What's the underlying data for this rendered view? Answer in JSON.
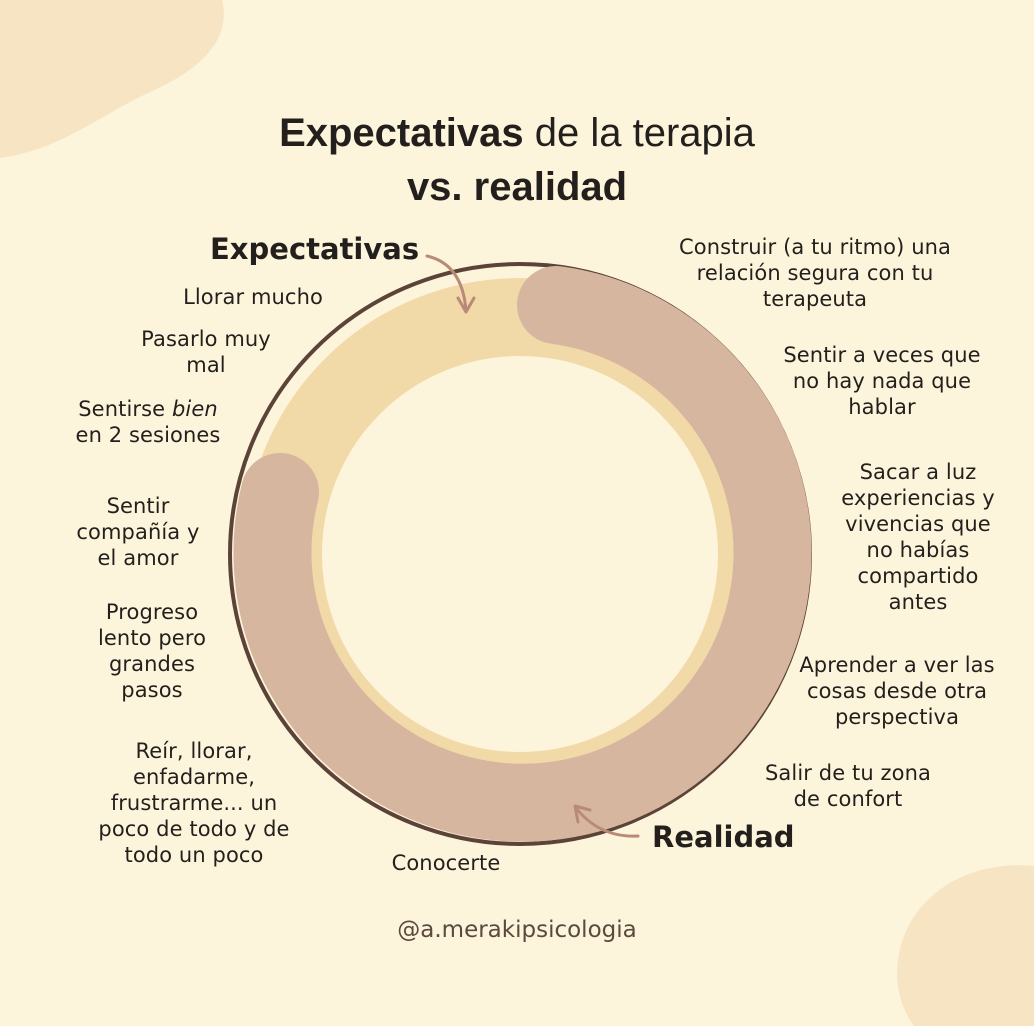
{
  "title": {
    "bold_part": "Expectativas",
    "regular_part": " de la terapia",
    "line2": "vs. realidad"
  },
  "expectativas": {
    "heading": "Expectativas",
    "items": [
      "Llorar mucho",
      "Pasarlo muy mal",
      "Sentirse bien en 2 sesiones"
    ],
    "item3_pre": "Sentirse ",
    "item3_em": "bien",
    "item3_post": "en 2 sesiones"
  },
  "realidad": {
    "heading": "Realidad",
    "items": [
      "Construir (a tu ritmo) una relación segura con tu terapeuta",
      "Sentir a veces que no hay nada que hablar",
      "Sacar a luz experiencias y vivencias que no habías compartido antes",
      "Aprender a ver las cosas desde otra perspectiva",
      "Salir de tu zona de confort",
      "Conocerte",
      "Reír, llorar, enfadarme, frustrarme... un poco de todo y de todo un poco",
      "Progreso lento pero grandes pasos",
      "Sentir compañía y el amor"
    ]
  },
  "chart_data": {
    "type": "pie",
    "title": "Expectativas de la terapia vs. realidad",
    "categories": [
      "Expectativas",
      "Realidad"
    ],
    "values": [
      20,
      80
    ]
  },
  "footer": {
    "handle": "@a.merakipsicologia"
  },
  "colors": {
    "background": "#fdf4dc",
    "blob": "#f6e4c3",
    "expectativas_segment": "#f2d9a8",
    "realidad_segment": "#d7b6a0",
    "ring_outline": "#5b4437",
    "arrow": "#b98a78",
    "text": "#231f1c"
  }
}
